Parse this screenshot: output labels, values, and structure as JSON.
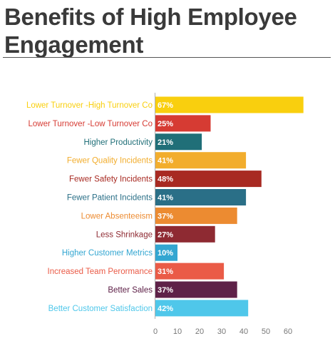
{
  "title": "Benefits of High Employee Engagement",
  "chart_data": {
    "type": "bar",
    "orientation": "horizontal",
    "title": "Benefits of High Employee Engagement",
    "xlabel": "",
    "ylabel": "",
    "xlim": [
      0,
      65
    ],
    "xticks": [
      0,
      10,
      20,
      30,
      40,
      50,
      60
    ],
    "grid": false,
    "categories": [
      "Lower Turnover -High Turnover Co",
      "Lower Turnover -Low Turnover Co",
      "Higher Productivity",
      "Fewer Quality Incidents",
      "Fewer Safety Incidents",
      "Fewer Patient Incidents",
      "Lower Absenteeism",
      "Less Shrinkage",
      "Higher Customer Metrics",
      "Increased Team Perormance",
      "Better Sales",
      "Better Customer Satisfaction"
    ],
    "values": [
      67,
      25,
      21,
      41,
      48,
      41,
      37,
      27,
      10,
      31,
      37,
      42
    ],
    "value_labels": [
      "67%",
      "25%",
      "21%",
      "41%",
      "48%",
      "41%",
      "37%",
      "27%",
      "10%",
      "31%",
      "37%",
      "42%"
    ],
    "colors": [
      "#f9cf0e",
      "#d63b33",
      "#206f78",
      "#f2ad2d",
      "#a82a22",
      "#2a6f87",
      "#ec8b31",
      "#8e2a32",
      "#33a6d1",
      "#ea5b47",
      "#5e2148",
      "#4fc7ea"
    ]
  }
}
